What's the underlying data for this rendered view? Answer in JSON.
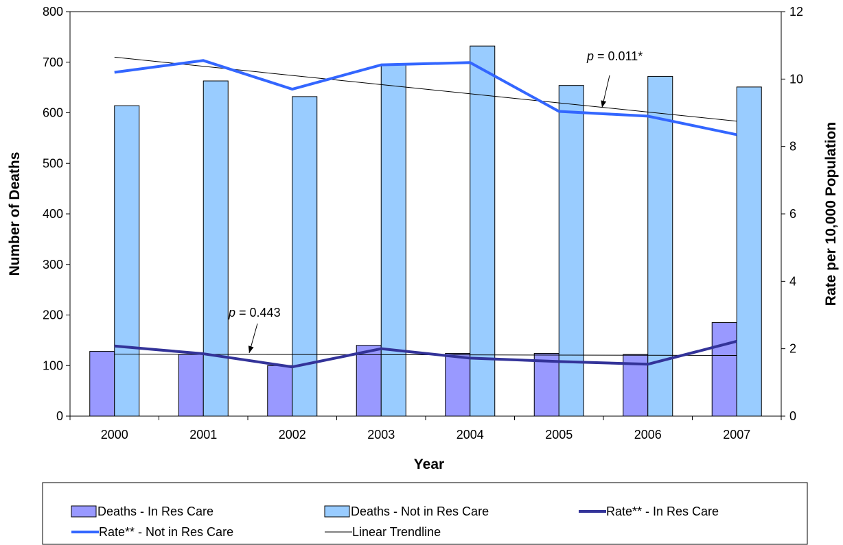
{
  "chart_data": {
    "type": "bar",
    "categories": [
      "2000",
      "2001",
      "2002",
      "2003",
      "2004",
      "2005",
      "2006",
      "2007"
    ],
    "xlabel": "Year",
    "ylabel": "Number of Deaths",
    "y2label": "Rate per 10,000 Population",
    "ylim": [
      0,
      800
    ],
    "y2lim": [
      0,
      12
    ],
    "yticks": [
      "0",
      "100",
      "200",
      "300",
      "400",
      "500",
      "600",
      "700",
      "800"
    ],
    "y2ticks": [
      "0",
      "2",
      "4",
      "6",
      "8",
      "10",
      "12"
    ],
    "grid": false,
    "legend_position": "bottom",
    "series": [
      {
        "name": "Deaths - In Res Care",
        "type": "bar",
        "axis": "left",
        "color": "#9999ff",
        "values": [
          128,
          122,
          100,
          140,
          124,
          124,
          122,
          185
        ]
      },
      {
        "name": "Deaths - Not in Res Care",
        "type": "bar",
        "axis": "left",
        "color": "#99ccff",
        "values": [
          614,
          663,
          632,
          696,
          732,
          654,
          672,
          651
        ]
      },
      {
        "name": "Rate** - In Res Care",
        "type": "line",
        "axis": "right",
        "color": "#333399",
        "values": [
          2.08,
          1.85,
          1.46,
          2.0,
          1.72,
          1.62,
          1.54,
          2.22
        ]
      },
      {
        "name": "Rate** - Not in Res Care",
        "type": "line",
        "axis": "right",
        "color": "#3366ff",
        "values": [
          10.2,
          10.55,
          9.7,
          10.42,
          10.49,
          9.04,
          8.9,
          8.35
        ]
      },
      {
        "name": "Linear Trendline",
        "type": "trend",
        "color": "#000000"
      }
    ],
    "trendlines": [
      {
        "of": "Rate** - Not in Res Care",
        "axis": "right",
        "start": 10.65,
        "end": 8.75
      },
      {
        "of": "Rate** - In Res Care",
        "axis": "right",
        "start": 1.84,
        "end": 1.8
      }
    ],
    "annotations": [
      {
        "italic": "p",
        "text": " = 0.011*",
        "series": "Rate** - Not in Res Care"
      },
      {
        "italic": "p",
        "text": " = 0.443",
        "series": "Rate** - In Res Care"
      }
    ]
  }
}
